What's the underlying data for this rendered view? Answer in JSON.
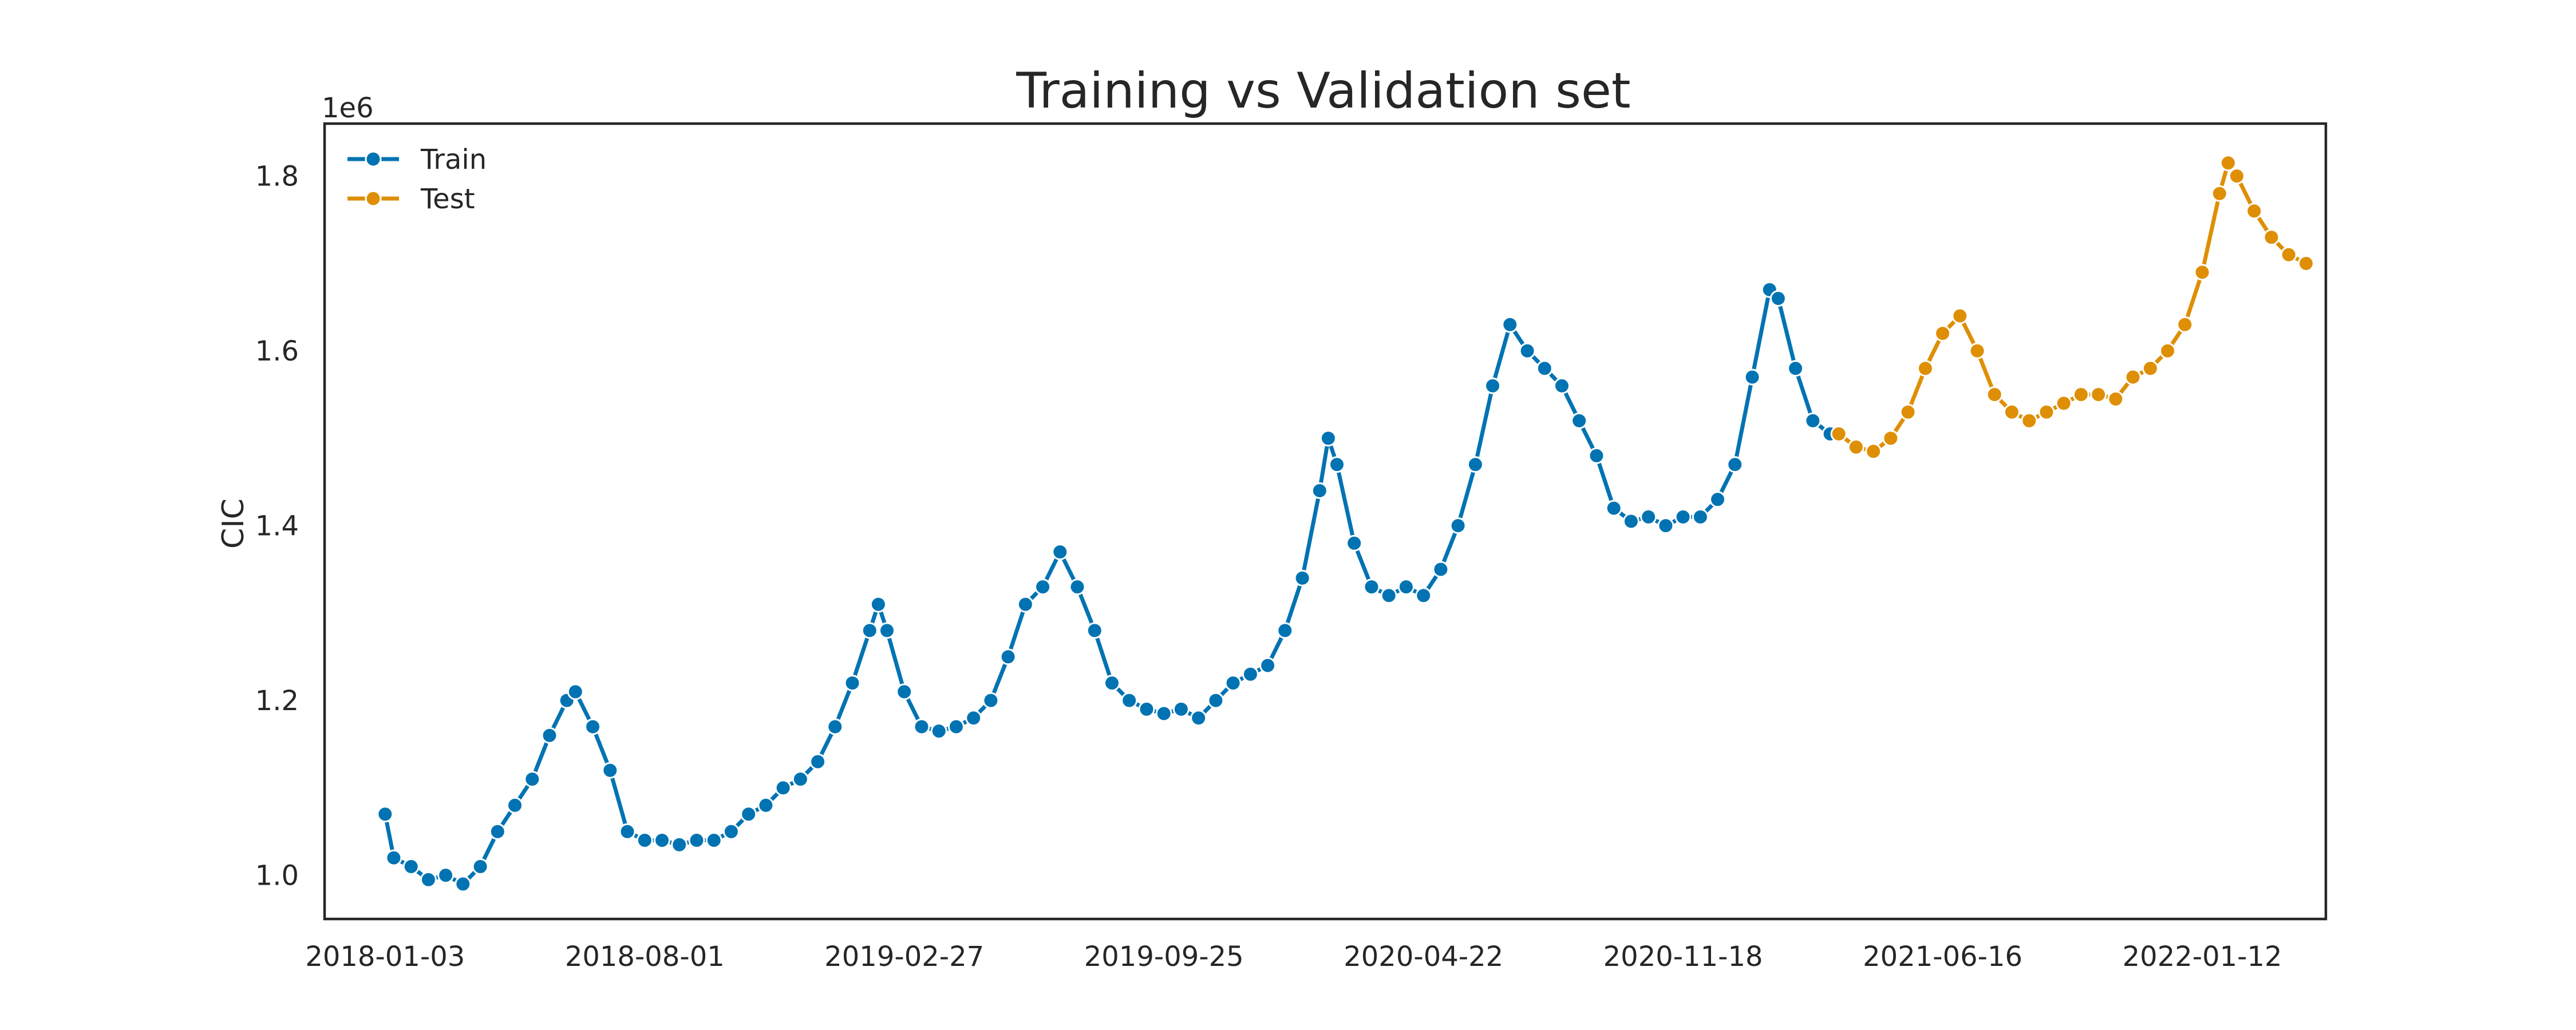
{
  "chart_data": {
    "type": "line",
    "title": "Training vs Validation set",
    "xlabel": "",
    "ylabel": "CIC",
    "y_offset_label": "1e6",
    "xlim": [
      "2017-11-15",
      "2022-04-22"
    ],
    "ylim": [
      0.95,
      1.86
    ],
    "y_ticks": [
      1.0,
      1.2,
      1.4,
      1.6,
      1.8
    ],
    "y_tick_labels": [
      "1.0",
      "1.2",
      "1.4",
      "1.6",
      "1.8"
    ],
    "x_ticks": [
      "2018-01-03",
      "2018-08-01",
      "2019-02-27",
      "2019-09-25",
      "2020-04-22",
      "2020-11-18",
      "2021-06-16",
      "2022-01-12"
    ],
    "grid": false,
    "legend_position": "top-left",
    "series": [
      {
        "name": "Train",
        "color": "#0173b2",
        "marker": "circle",
        "points": [
          [
            "2018-01-03",
            1.07
          ],
          [
            "2018-01-10",
            1.02
          ],
          [
            "2018-01-24",
            1.01
          ],
          [
            "2018-02-07",
            0.995
          ],
          [
            "2018-02-21",
            1.0
          ],
          [
            "2018-03-07",
            0.99
          ],
          [
            "2018-03-21",
            1.01
          ],
          [
            "2018-04-04",
            1.05
          ],
          [
            "2018-04-18",
            1.08
          ],
          [
            "2018-05-02",
            1.11
          ],
          [
            "2018-05-16",
            1.16
          ],
          [
            "2018-05-30",
            1.2
          ],
          [
            "2018-06-06",
            1.21
          ],
          [
            "2018-06-20",
            1.17
          ],
          [
            "2018-07-04",
            1.12
          ],
          [
            "2018-07-18",
            1.05
          ],
          [
            "2018-08-01",
            1.04
          ],
          [
            "2018-08-15",
            1.04
          ],
          [
            "2018-08-29",
            1.035
          ],
          [
            "2018-09-12",
            1.04
          ],
          [
            "2018-09-26",
            1.04
          ],
          [
            "2018-10-10",
            1.05
          ],
          [
            "2018-10-24",
            1.07
          ],
          [
            "2018-11-07",
            1.08
          ],
          [
            "2018-11-21",
            1.1
          ],
          [
            "2018-12-05",
            1.11
          ],
          [
            "2018-12-19",
            1.13
          ],
          [
            "2019-01-02",
            1.17
          ],
          [
            "2019-01-16",
            1.22
          ],
          [
            "2019-01-30",
            1.28
          ],
          [
            "2019-02-06",
            1.31
          ],
          [
            "2019-02-13",
            1.28
          ],
          [
            "2019-02-27",
            1.21
          ],
          [
            "2019-03-13",
            1.17
          ],
          [
            "2019-03-27",
            1.165
          ],
          [
            "2019-04-10",
            1.17
          ],
          [
            "2019-04-24",
            1.18
          ],
          [
            "2019-05-08",
            1.2
          ],
          [
            "2019-05-22",
            1.25
          ],
          [
            "2019-06-05",
            1.31
          ],
          [
            "2019-06-19",
            1.33
          ],
          [
            "2019-07-03",
            1.37
          ],
          [
            "2019-07-17",
            1.33
          ],
          [
            "2019-07-31",
            1.28
          ],
          [
            "2019-08-14",
            1.22
          ],
          [
            "2019-08-28",
            1.2
          ],
          [
            "2019-09-11",
            1.19
          ],
          [
            "2019-09-25",
            1.185
          ],
          [
            "2019-10-09",
            1.19
          ],
          [
            "2019-10-23",
            1.18
          ],
          [
            "2019-11-06",
            1.2
          ],
          [
            "2019-11-20",
            1.22
          ],
          [
            "2019-12-04",
            1.23
          ],
          [
            "2019-12-18",
            1.24
          ],
          [
            "2020-01-01",
            1.28
          ],
          [
            "2020-01-15",
            1.34
          ],
          [
            "2020-01-29",
            1.44
          ],
          [
            "2020-02-05",
            1.5
          ],
          [
            "2020-02-12",
            1.47
          ],
          [
            "2020-02-26",
            1.38
          ],
          [
            "2020-03-11",
            1.33
          ],
          [
            "2020-03-25",
            1.32
          ],
          [
            "2020-04-08",
            1.33
          ],
          [
            "2020-04-22",
            1.32
          ],
          [
            "2020-05-06",
            1.35
          ],
          [
            "2020-05-20",
            1.4
          ],
          [
            "2020-06-03",
            1.47
          ],
          [
            "2020-06-17",
            1.56
          ],
          [
            "2020-07-01",
            1.63
          ],
          [
            "2020-07-15",
            1.6
          ],
          [
            "2020-07-29",
            1.58
          ],
          [
            "2020-08-12",
            1.56
          ],
          [
            "2020-08-26",
            1.52
          ],
          [
            "2020-09-09",
            1.48
          ],
          [
            "2020-09-23",
            1.42
          ],
          [
            "2020-10-07",
            1.405
          ],
          [
            "2020-10-21",
            1.41
          ],
          [
            "2020-11-04",
            1.4
          ],
          [
            "2020-11-18",
            1.41
          ],
          [
            "2020-12-02",
            1.41
          ],
          [
            "2020-12-16",
            1.43
          ],
          [
            "2020-12-30",
            1.47
          ],
          [
            "2021-01-13",
            1.57
          ],
          [
            "2021-01-27",
            1.67
          ],
          [
            "2021-02-03",
            1.66
          ],
          [
            "2021-02-17",
            1.58
          ],
          [
            "2021-03-03",
            1.52
          ],
          [
            "2021-03-17",
            1.505
          ]
        ]
      },
      {
        "name": "Test",
        "color": "#de8f05",
        "marker": "circle",
        "points": [
          [
            "2021-03-24",
            1.505
          ],
          [
            "2021-04-07",
            1.49
          ],
          [
            "2021-04-21",
            1.485
          ],
          [
            "2021-05-05",
            1.5
          ],
          [
            "2021-05-19",
            1.53
          ],
          [
            "2021-06-02",
            1.58
          ],
          [
            "2021-06-16",
            1.62
          ],
          [
            "2021-06-30",
            1.64
          ],
          [
            "2021-07-14",
            1.6
          ],
          [
            "2021-07-28",
            1.55
          ],
          [
            "2021-08-11",
            1.53
          ],
          [
            "2021-08-25",
            1.52
          ],
          [
            "2021-09-08",
            1.53
          ],
          [
            "2021-09-22",
            1.54
          ],
          [
            "2021-10-06",
            1.55
          ],
          [
            "2021-10-20",
            1.55
          ],
          [
            "2021-11-03",
            1.545
          ],
          [
            "2021-11-17",
            1.57
          ],
          [
            "2021-12-01",
            1.58
          ],
          [
            "2021-12-15",
            1.6
          ],
          [
            "2021-12-29",
            1.63
          ],
          [
            "2022-01-12",
            1.69
          ],
          [
            "2022-01-26",
            1.78
          ],
          [
            "2022-02-02",
            1.815
          ],
          [
            "2022-02-09",
            1.8
          ],
          [
            "2022-02-23",
            1.76
          ],
          [
            "2022-03-09",
            1.73
          ],
          [
            "2022-03-23",
            1.71
          ],
          [
            "2022-04-06",
            1.7
          ]
        ]
      }
    ]
  }
}
